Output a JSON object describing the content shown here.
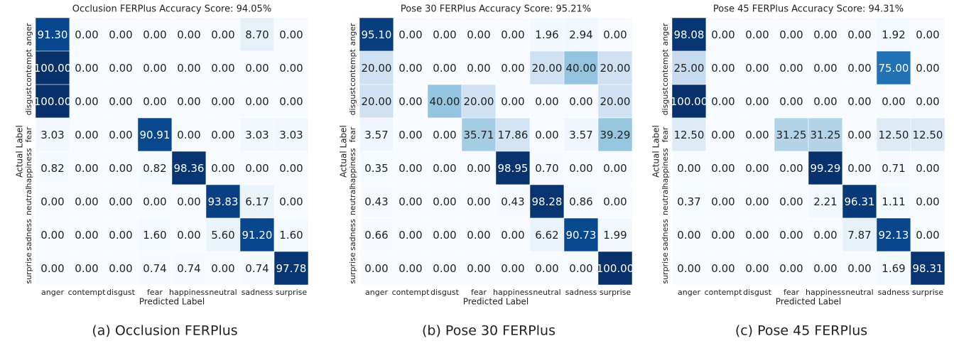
{
  "chart_data": [
    {
      "type": "heatmap",
      "title": "Occlusion FERPlus Accuracy Score: 94.05%",
      "caption": "(a) Occlusion FERPlus",
      "xlabel": "Predicted Label",
      "ylabel": "Actual Label",
      "categories": [
        "anger",
        "contempt",
        "disgust",
        "fear",
        "happiness",
        "neutral",
        "sadness",
        "surprise"
      ],
      "zlim": [
        0,
        100
      ],
      "colors": [
        "#f7fbff",
        "#deebf7",
        "#c6dbef",
        "#9ecae1",
        "#6baed6",
        "#4292c6",
        "#2171b5",
        "#08519c",
        "#08306b"
      ],
      "values": [
        [
          91.3,
          0,
          0,
          0,
          0,
          0,
          8.7,
          0
        ],
        [
          100,
          0,
          0,
          0,
          0,
          0,
          0,
          0
        ],
        [
          100,
          0,
          0,
          0,
          0,
          0,
          0,
          0
        ],
        [
          3.03,
          0,
          0,
          90.91,
          0,
          0,
          3.03,
          3.03
        ],
        [
          0.82,
          0,
          0,
          0.82,
          98.36,
          0,
          0,
          0
        ],
        [
          0,
          0,
          0,
          0,
          0,
          93.83,
          6.17,
          0
        ],
        [
          0,
          0,
          0,
          1.6,
          0,
          5.6,
          91.2,
          1.6
        ],
        [
          0,
          0,
          0,
          0.74,
          0.74,
          0,
          0.74,
          97.78
        ]
      ],
      "value_labels": [
        [
          "91.30",
          "0.00",
          "0.00",
          "0.00",
          "0.00",
          "0.00",
          "8.70",
          "0.00"
        ],
        [
          "100.00",
          "0.00",
          "0.00",
          "0.00",
          "0.00",
          "0.00",
          "0.00",
          "0.00"
        ],
        [
          "100.00",
          "0.00",
          "0.00",
          "0.00",
          "0.00",
          "0.00",
          "0.00",
          "0.00"
        ],
        [
          "3.03",
          "0.00",
          "0.00",
          "90.91",
          "0.00",
          "0.00",
          "3.03",
          "3.03"
        ],
        [
          "0.82",
          "0.00",
          "0.00",
          "0.82",
          "98.36",
          "0.00",
          "0.00",
          "0.00"
        ],
        [
          "0.00",
          "0.00",
          "0.00",
          "0.00",
          "0.00",
          "93.83",
          "6.17",
          "0.00"
        ],
        [
          "0.00",
          "0.00",
          "0.00",
          "1.60",
          "0.00",
          "5.60",
          "91.20",
          "1.60"
        ],
        [
          "0.00",
          "0.00",
          "0.00",
          "0.74",
          "0.74",
          "0.00",
          "0.74",
          "97.78"
        ]
      ]
    },
    {
      "type": "heatmap",
      "title": "Pose 30 FERPlus Accuracy Score: 95.21%",
      "caption": "(b) Pose 30 FERPlus",
      "xlabel": "Predicted Label",
      "ylabel": "Actual Label",
      "categories": [
        "anger",
        "contempt",
        "disgust",
        "fear",
        "happiness",
        "neutral",
        "sadness",
        "surprise"
      ],
      "zlim": [
        0,
        100
      ],
      "colors": [
        "#f7fbff",
        "#deebf7",
        "#c6dbef",
        "#9ecae1",
        "#6baed6",
        "#4292c6",
        "#2171b5",
        "#08519c",
        "#08306b"
      ],
      "values": [
        [
          95.1,
          0,
          0,
          0,
          0,
          1.96,
          2.94,
          0
        ],
        [
          20,
          0,
          0,
          0,
          0,
          20,
          40,
          20
        ],
        [
          20,
          0,
          40,
          20,
          0,
          0,
          0,
          20
        ],
        [
          3.57,
          0,
          0,
          35.71,
          17.86,
          0,
          3.57,
          39.29
        ],
        [
          0.35,
          0,
          0,
          0,
          98.95,
          0.7,
          0,
          0
        ],
        [
          0.43,
          0,
          0,
          0,
          0.43,
          98.28,
          0.86,
          0
        ],
        [
          0.66,
          0,
          0,
          0,
          0,
          6.62,
          90.73,
          1.99
        ],
        [
          0,
          0,
          0,
          0,
          0,
          0,
          0,
          100
        ]
      ],
      "value_labels": [
        [
          "95.10",
          "0.00",
          "0.00",
          "0.00",
          "0.00",
          "1.96",
          "2.94",
          "0.00"
        ],
        [
          "20.00",
          "0.00",
          "0.00",
          "0.00",
          "0.00",
          "20.00",
          "40.00",
          "20.00"
        ],
        [
          "20.00",
          "0.00",
          "40.00",
          "20.00",
          "0.00",
          "0.00",
          "0.00",
          "20.00"
        ],
        [
          "3.57",
          "0.00",
          "0.00",
          "35.71",
          "17.86",
          "0.00",
          "3.57",
          "39.29"
        ],
        [
          "0.35",
          "0.00",
          "0.00",
          "0.00",
          "98.95",
          "0.70",
          "0.00",
          "0.00"
        ],
        [
          "0.43",
          "0.00",
          "0.00",
          "0.00",
          "0.43",
          "98.28",
          "0.86",
          "0.00"
        ],
        [
          "0.66",
          "0.00",
          "0.00",
          "0.00",
          "0.00",
          "6.62",
          "90.73",
          "1.99"
        ],
        [
          "0.00",
          "0.00",
          "0.00",
          "0.00",
          "0.00",
          "0.00",
          "0.00",
          "100.00"
        ]
      ]
    },
    {
      "type": "heatmap",
      "title": "Pose 45 FERPlus Accuracy Score: 94.31%",
      "caption": "(c) Pose 45 FERPlus",
      "xlabel": "Predicted Label",
      "ylabel": "Actual Label",
      "categories": [
        "anger",
        "contempt",
        "disgust",
        "fear",
        "happiness",
        "neutral",
        "sadness",
        "surprise"
      ],
      "zlim": [
        0,
        100
      ],
      "colors": [
        "#f7fbff",
        "#deebf7",
        "#c6dbef",
        "#9ecae1",
        "#6baed6",
        "#4292c6",
        "#2171b5",
        "#08519c",
        "#08306b"
      ],
      "values": [
        [
          98.08,
          0,
          0,
          0,
          0,
          0,
          1.92,
          0
        ],
        [
          25,
          0,
          0,
          0,
          0,
          0,
          75,
          0
        ],
        [
          100,
          0,
          0,
          0,
          0,
          0,
          0,
          0
        ],
        [
          12.5,
          0,
          0,
          31.25,
          31.25,
          0,
          12.5,
          12.5
        ],
        [
          0,
          0,
          0,
          0,
          99.29,
          0,
          0.71,
          0
        ],
        [
          0.37,
          0,
          0,
          0,
          2.21,
          96.31,
          1.11,
          0
        ],
        [
          0,
          0,
          0,
          0,
          0,
          7.87,
          92.13,
          0
        ],
        [
          0,
          0,
          0,
          0,
          0,
          0,
          1.69,
          98.31
        ]
      ],
      "value_labels": [
        [
          "98.08",
          "0.00",
          "0.00",
          "0.00",
          "0.00",
          "0.00",
          "1.92",
          "0.00"
        ],
        [
          "25.00",
          "0.00",
          "0.00",
          "0.00",
          "0.00",
          "0.00",
          "75.00",
          "0.00"
        ],
        [
          "100.00",
          "0.00",
          "0.00",
          "0.00",
          "0.00",
          "0.00",
          "0.00",
          "0.00"
        ],
        [
          "12.50",
          "0.00",
          "0.00",
          "31.25",
          "31.25",
          "0.00",
          "12.50",
          "12.50"
        ],
        [
          "0.00",
          "0.00",
          "0.00",
          "0.00",
          "99.29",
          "0.00",
          "0.71",
          "0.00"
        ],
        [
          "0.37",
          "0.00",
          "0.00",
          "0.00",
          "2.21",
          "96.31",
          "1.11",
          "0.00"
        ],
        [
          "0.00",
          "0.00",
          "0.00",
          "0.00",
          "0.00",
          "7.87",
          "92.13",
          "0.00"
        ],
        [
          "0.00",
          "0.00",
          "0.00",
          "0.00",
          "0.00",
          "0.00",
          "1.69",
          "98.31"
        ]
      ]
    }
  ]
}
